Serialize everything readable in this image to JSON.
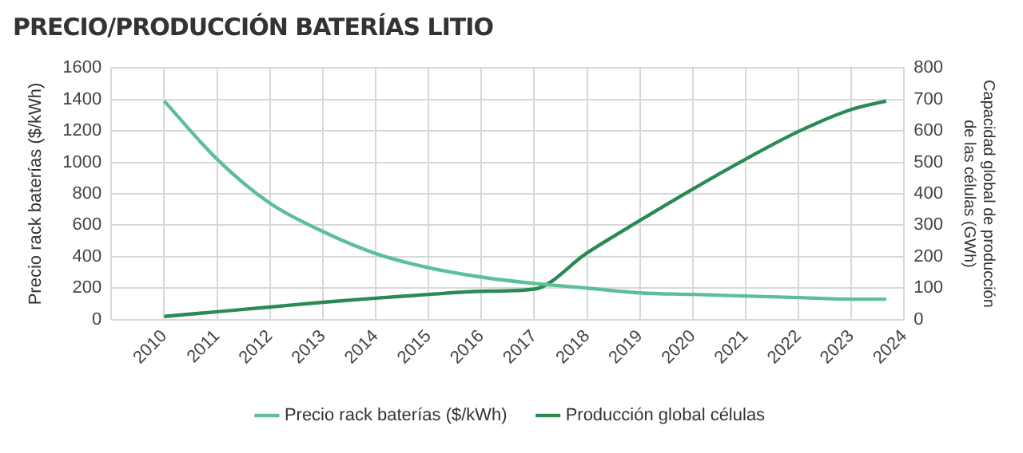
{
  "chart_data": {
    "type": "line",
    "title": "PRECIO/PRODUCCIÓN BATERÍAS LITIO",
    "ylabel": "Precio rack baterías ($/kWh)",
    "y2label": "Capacidad global de producción de las células (GWh)",
    "series": [
      {
        "name": "Precio rack baterías ($/kWh)",
        "color": "#5cbf95",
        "x": [
          2010,
          2011,
          2012,
          2013,
          2014,
          2015,
          2016,
          2017,
          2018,
          2019,
          2020,
          2021,
          2022,
          2023,
          2023.66
        ],
        "values": [
          1390,
          1020,
          740,
          560,
          420,
          330,
          270,
          230,
          200,
          170,
          160,
          150,
          140,
          130,
          130
        ]
      },
      {
        "name": "Producción global células",
        "color": "#2a8a55",
        "axis": "y2",
        "x": [
          2010,
          2011,
          2012,
          2013,
          2014,
          2015,
          2016,
          2017,
          2018,
          2019,
          2020,
          2021,
          2022,
          2023,
          2023.66
        ],
        "values": [
          10,
          25,
          40,
          55,
          68,
          80,
          90,
          97,
          212,
          315,
          415,
          510,
          598,
          668,
          695
        ]
      }
    ],
    "xlim": [
      2009,
      2024
    ],
    "xticks": [
      {
        "value": 2009,
        "label": null
      },
      2010,
      2011,
      2012,
      2013,
      2014,
      2015,
      2016,
      2017,
      2018,
      2019,
      2020,
      2021,
      2022,
      2023,
      2024
    ],
    "ylim": [
      0,
      1600
    ],
    "yticks": [
      0,
      200,
      400,
      600,
      800,
      1000,
      1200,
      1400,
      1600
    ],
    "y2lim": [
      0,
      800
    ],
    "y2ticks": [
      0,
      100,
      200,
      300,
      400,
      500,
      600,
      700,
      800
    ],
    "grid": true,
    "legend": "bottom",
    "marker": "none",
    "line_style": "solid"
  }
}
